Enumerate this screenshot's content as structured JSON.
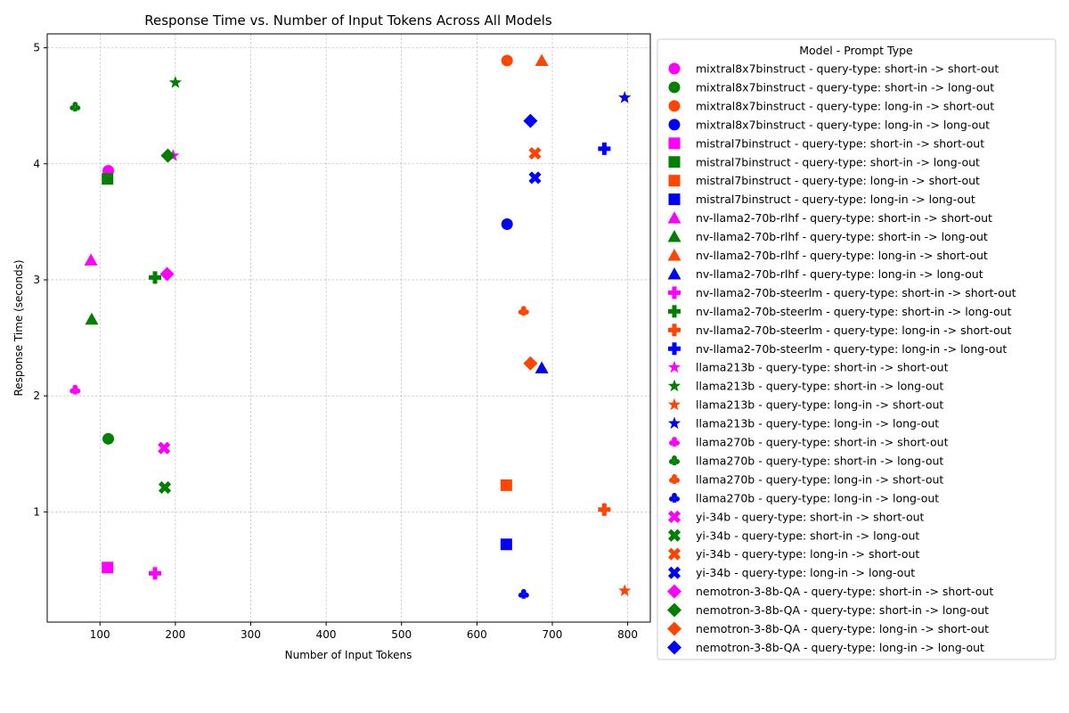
{
  "chart_data": {
    "type": "scatter",
    "title": "Response Time vs. Number of Input Tokens Across All Models",
    "xlabel": "Number of Input Tokens",
    "ylabel": "Response Time (seconds)",
    "xlim": [
      30,
      830
    ],
    "ylim": [
      0.05,
      5.12
    ],
    "xticks": [
      100,
      200,
      300,
      400,
      500,
      600,
      700,
      800
    ],
    "yticks": [
      1,
      2,
      3,
      4,
      5
    ],
    "grid": true,
    "legend_title": "Model - Prompt Type",
    "legend_position": "outside right",
    "colors": {
      "short-in -> short-out": "#ff00ff",
      "short-in -> long-out": "#008000",
      "long-in -> short-out": "#ff4500",
      "long-in -> long-out": "#0000ff"
    },
    "series": [
      {
        "name": "mixtral8x7binstruct - query-type: short-in -> short-out",
        "marker": "circle",
        "color": "#ff00ff",
        "x": 111,
        "y": 3.94
      },
      {
        "name": "mixtral8x7binstruct - query-type: short-in -> long-out",
        "marker": "circle",
        "color": "#008000",
        "x": 111,
        "y": 1.63
      },
      {
        "name": "mixtral8x7binstruct - query-type: long-in -> short-out",
        "marker": "circle",
        "color": "#ff4500",
        "x": 640,
        "y": 4.89
      },
      {
        "name": "mixtral8x7binstruct - query-type: long-in -> long-out",
        "marker": "circle",
        "color": "#0000ff",
        "x": 640,
        "y": 3.48
      },
      {
        "name": "mistral7binstruct - query-type: short-in -> short-out",
        "marker": "square",
        "color": "#ff00ff",
        "x": 110,
        "y": 0.52
      },
      {
        "name": "mistral7binstruct - query-type: short-in -> long-out",
        "marker": "square",
        "color": "#008000",
        "x": 110,
        "y": 3.87
      },
      {
        "name": "mistral7binstruct - query-type: long-in -> short-out",
        "marker": "square",
        "color": "#ff4500",
        "x": 639,
        "y": 1.23
      },
      {
        "name": "mistral7binstruct - query-type: long-in -> long-out",
        "marker": "square",
        "color": "#0000ff",
        "x": 639,
        "y": 0.72
      },
      {
        "name": "nv-llama2-70b-rlhf - query-type: short-in -> short-out",
        "marker": "triangle",
        "color": "#ff00ff",
        "x": 88,
        "y": 3.17
      },
      {
        "name": "nv-llama2-70b-rlhf - query-type: short-in -> long-out",
        "marker": "triangle",
        "color": "#008000",
        "x": 89,
        "y": 2.66
      },
      {
        "name": "nv-llama2-70b-rlhf - query-type: long-in -> short-out",
        "marker": "triangle",
        "color": "#ff4500",
        "x": 686,
        "y": 4.89
      },
      {
        "name": "nv-llama2-70b-rlhf - query-type: long-in -> long-out",
        "marker": "triangle",
        "color": "#0000ff",
        "x": 686,
        "y": 2.24
      },
      {
        "name": "nv-llama2-70b-steerlm - query-type: short-in -> short-out",
        "marker": "plus",
        "color": "#ff00ff",
        "x": 173,
        "y": 0.47
      },
      {
        "name": "nv-llama2-70b-steerlm - query-type: short-in -> long-out",
        "marker": "plus",
        "color": "#008000",
        "x": 173,
        "y": 3.02
      },
      {
        "name": "nv-llama2-70b-steerlm - query-type: long-in -> short-out",
        "marker": "plus",
        "color": "#ff4500",
        "x": 769,
        "y": 1.02
      },
      {
        "name": "nv-llama2-70b-steerlm - query-type: long-in -> long-out",
        "marker": "plus",
        "color": "#0000ff",
        "x": 769,
        "y": 4.13
      },
      {
        "name": "llama213b - query-type: short-in -> short-out",
        "marker": "star",
        "color": "#ff00ff",
        "x": 197,
        "y": 4.07
      },
      {
        "name": "llama213b - query-type: short-in -> long-out",
        "marker": "star",
        "color": "#008000",
        "x": 200,
        "y": 4.7
      },
      {
        "name": "llama213b - query-type: long-in -> short-out",
        "marker": "star",
        "color": "#ff4500",
        "x": 796,
        "y": 0.32
      },
      {
        "name": "llama213b - query-type: long-in -> long-out",
        "marker": "star",
        "color": "#0000ff",
        "x": 796,
        "y": 4.57
      },
      {
        "name": "llama270b - query-type: short-in -> short-out",
        "marker": "club",
        "color": "#ff00ff",
        "x": 67,
        "y": 2.05
      },
      {
        "name": "llama270b - query-type: short-in -> long-out",
        "marker": "club",
        "color": "#008000",
        "x": 67,
        "y": 4.49
      },
      {
        "name": "llama270b - query-type: long-in -> short-out",
        "marker": "club",
        "color": "#ff4500",
        "x": 662,
        "y": 2.73
      },
      {
        "name": "llama270b - query-type: long-in -> long-out",
        "marker": "club",
        "color": "#0000ff",
        "x": 662,
        "y": 0.29
      },
      {
        "name": "yi-34b - query-type: short-in -> short-out",
        "marker": "x",
        "color": "#ff00ff",
        "x": 185,
        "y": 1.55
      },
      {
        "name": "yi-34b - query-type: short-in -> long-out",
        "marker": "x",
        "color": "#008000",
        "x": 186,
        "y": 1.21
      },
      {
        "name": "yi-34b - query-type: long-in -> short-out",
        "marker": "x",
        "color": "#ff4500",
        "x": 677,
        "y": 4.09
      },
      {
        "name": "yi-34b - query-type: long-in -> long-out",
        "marker": "x",
        "color": "#0000ff",
        "x": 677,
        "y": 3.88
      },
      {
        "name": "nemotron-3-8b-QA - query-type: short-in -> short-out",
        "marker": "diamond",
        "color": "#ff00ff",
        "x": 189,
        "y": 3.05
      },
      {
        "name": "nemotron-3-8b-QA - query-type: short-in -> long-out",
        "marker": "diamond",
        "color": "#008000",
        "x": 190,
        "y": 4.07
      },
      {
        "name": "nemotron-3-8b-QA - query-type: long-in -> short-out",
        "marker": "diamond",
        "color": "#ff4500",
        "x": 671,
        "y": 2.28
      },
      {
        "name": "nemotron-3-8b-QA - query-type: long-in -> long-out",
        "marker": "diamond",
        "color": "#0000ff",
        "x": 671,
        "y": 4.37
      }
    ]
  }
}
